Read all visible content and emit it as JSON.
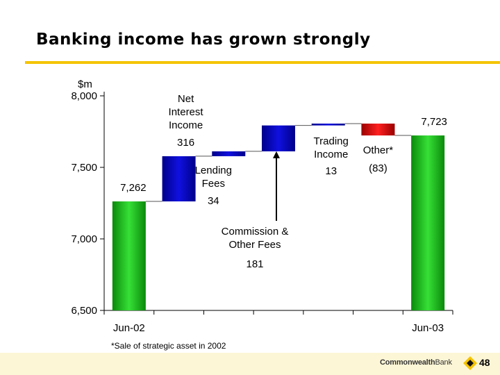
{
  "slide": {
    "title": "Banking income has grown strongly",
    "footnote": "*Sale of strategic asset in 2002",
    "logo_text": "CommonwealthBank",
    "page_number": "48"
  },
  "colors": {
    "accent": "#f5c400",
    "total_bar": "#19b819",
    "increase_bar": "#1010e0",
    "decrease_bar": "#e00000"
  },
  "chart_data": {
    "type": "bar",
    "subtype": "waterfall",
    "unit_label": "$m",
    "ylim": [
      6500,
      8000
    ],
    "yticks": [
      6500,
      7000,
      7500,
      8000
    ],
    "ytick_labels": [
      "6,500",
      "7,000",
      "7,500",
      "8,000"
    ],
    "xtick_labels": [
      "Jun-02",
      "Jun-03"
    ],
    "grid": false,
    "legend": "none",
    "steps": [
      {
        "kind": "total",
        "category": "Jun-02",
        "value": 7262,
        "label_lines": [],
        "value_label": "7,262"
      },
      {
        "kind": "delta",
        "category": "Net Interest Income",
        "value": 316,
        "label_lines": [
          "Net",
          "Interest",
          "Income"
        ],
        "value_label": "316"
      },
      {
        "kind": "delta",
        "category": "Lending Fees",
        "value": 34,
        "label_lines": [
          "Lending",
          "Fees"
        ],
        "value_label": "34"
      },
      {
        "kind": "delta",
        "category": "Commission & Other Fees",
        "value": 181,
        "label_lines": [
          "Commission &",
          "Other Fees"
        ],
        "value_label": "181"
      },
      {
        "kind": "delta",
        "category": "Trading Income",
        "value": 13,
        "label_lines": [
          "Trading",
          "Income"
        ],
        "value_label": "13"
      },
      {
        "kind": "delta",
        "category": "Other*",
        "value": -83,
        "label_lines": [
          "Other*"
        ],
        "value_label": "(83)"
      },
      {
        "kind": "total",
        "category": "Jun-03",
        "value": 7723,
        "label_lines": [],
        "value_label": "7,723"
      }
    ]
  }
}
